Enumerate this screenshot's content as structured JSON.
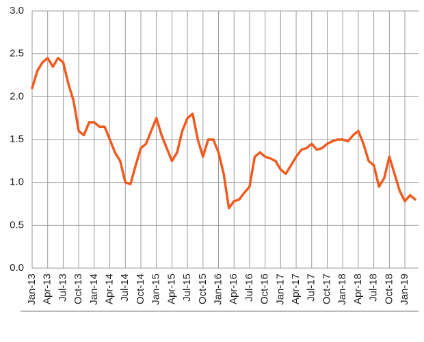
{
  "chart_data": {
    "type": "line",
    "x": [
      "Jan-13",
      "Feb-13",
      "Mar-13",
      "Apr-13",
      "May-13",
      "Jun-13",
      "Jul-13",
      "Aug-13",
      "Sep-13",
      "Oct-13",
      "Nov-13",
      "Dec-13",
      "Jan-14",
      "Feb-14",
      "Mar-14",
      "Apr-14",
      "May-14",
      "Jun-14",
      "Jul-14",
      "Aug-14",
      "Sep-14",
      "Oct-14",
      "Nov-14",
      "Dec-14",
      "Jan-15",
      "Feb-15",
      "Mar-15",
      "Apr-15",
      "May-15",
      "Jun-15",
      "Jul-15",
      "Aug-15",
      "Sep-15",
      "Oct-15",
      "Nov-15",
      "Dec-15",
      "Jan-16",
      "Feb-16",
      "Mar-16",
      "Apr-16",
      "May-16",
      "Jun-16",
      "Jul-16",
      "Aug-16",
      "Sep-16",
      "Oct-16",
      "Nov-16",
      "Dec-16",
      "Jan-17",
      "Feb-17",
      "Mar-17",
      "Apr-17",
      "May-17",
      "Jun-17",
      "Jul-17",
      "Aug-17",
      "Sep-17",
      "Oct-17",
      "Nov-17",
      "Dec-17",
      "Jan-18",
      "Feb-18",
      "Mar-18",
      "Apr-18",
      "May-18",
      "Jun-18",
      "Jul-18",
      "Aug-18",
      "Sep-18",
      "Oct-18",
      "Nov-18",
      "Dec-18",
      "Jan-19",
      "Feb-19",
      "Mar-19"
    ],
    "values": [
      2.1,
      2.3,
      2.4,
      2.45,
      2.35,
      2.45,
      2.4,
      2.15,
      1.95,
      1.6,
      1.55,
      1.7,
      1.7,
      1.65,
      1.65,
      1.5,
      1.35,
      1.25,
      1.0,
      0.98,
      1.2,
      1.4,
      1.45,
      1.6,
      1.75,
      1.55,
      1.4,
      1.25,
      1.35,
      1.6,
      1.75,
      1.8,
      1.5,
      1.3,
      1.5,
      1.5,
      1.35,
      1.1,
      0.7,
      0.78,
      0.8,
      0.88,
      0.95,
      1.3,
      1.35,
      1.3,
      1.28,
      1.25,
      1.15,
      1.1,
      1.2,
      1.3,
      1.38,
      1.4,
      1.45,
      1.38,
      1.4,
      1.45,
      1.48,
      1.5,
      1.5,
      1.48,
      1.55,
      1.6,
      1.45,
      1.25,
      1.2,
      0.95,
      1.05,
      1.3,
      1.1,
      0.9,
      0.78,
      0.85,
      0.8
    ],
    "color": "#f05a1e",
    "xticks": [
      "Jan-13",
      "Apr-13",
      "Jul-13",
      "Oct-13",
      "Jan-14",
      "Apr-14",
      "Jul-14",
      "Oct-14",
      "Jan-15",
      "Apr-15",
      "Jul-15",
      "Oct-15",
      "Jan-16",
      "Apr-16",
      "Jul-16",
      "Oct-16",
      "Jan-17",
      "Apr-17",
      "Jul-17",
      "Oct-17",
      "Jan-18",
      "Apr-18",
      "Jul-18",
      "Oct-18",
      "Jan-19"
    ],
    "ylim": [
      0,
      3
    ],
    "yticks": [
      {
        "value": 0,
        "label": "0.0"
      },
      {
        "value": 0.5,
        "label": "0.5"
      },
      {
        "value": 1,
        "label": "1.0"
      },
      {
        "value": 1.5,
        "label": "1.5"
      },
      {
        "value": 2,
        "label": "2.0"
      },
      {
        "value": 2.5,
        "label": "2.5"
      },
      {
        "value": 3,
        "label": "3.0"
      }
    ],
    "grid": true
  }
}
